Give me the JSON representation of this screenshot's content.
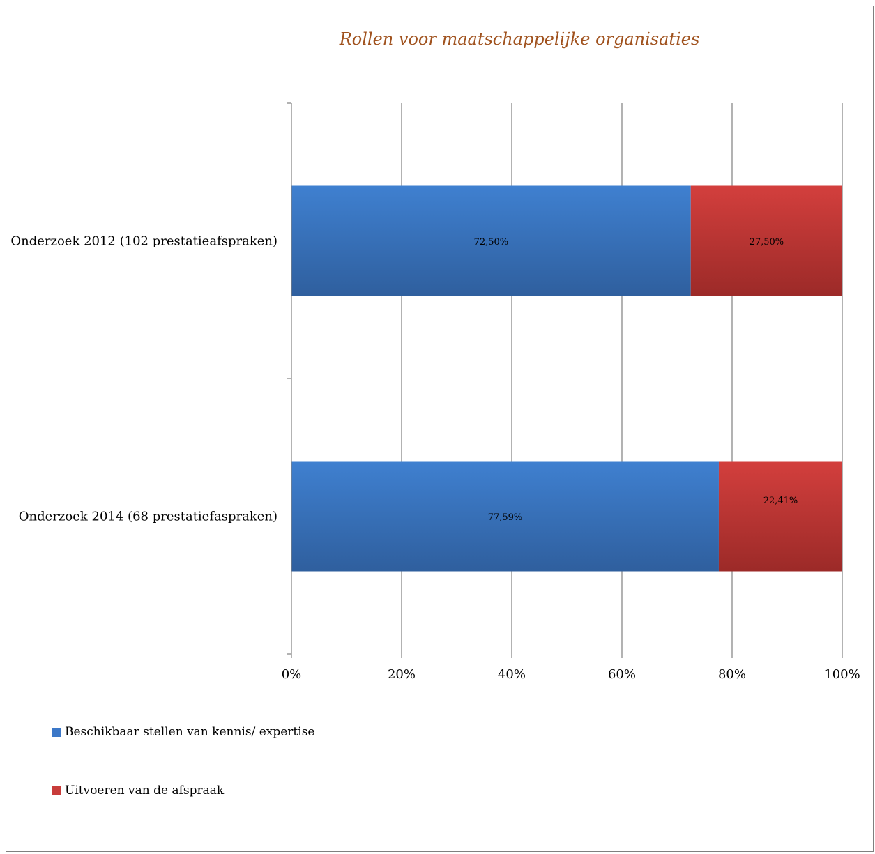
{
  "chart_data": {
    "type": "bar",
    "orientation": "horizontal",
    "stacked": true,
    "title": "Rollen voor maatschappelijke organisaties",
    "categories": [
      "Onderzoek 2012 (102 prestatieafspraken)",
      "Onderzoek 2014 (68 prestatiefaspraken)"
    ],
    "series": [
      {
        "name": "Beschikbaar stellen van kennis/ expertise",
        "values": [
          72.5,
          77.59
        ],
        "labels": [
          "72,50%",
          "77,59%"
        ],
        "color": "#3c78c8"
      },
      {
        "name": "Uitvoeren van de afspraak",
        "values": [
          27.5,
          22.41
        ],
        "labels": [
          "27,50%",
          "22,41%"
        ],
        "color": "#c83c3a"
      }
    ],
    "x_ticks": [
      "0%",
      "20%",
      "40%",
      "60%",
      "80%",
      "100%"
    ],
    "xlim": [
      0,
      100
    ],
    "grid": true,
    "legend_position": "bottom-left"
  },
  "colors": {
    "title": "#a0521e",
    "frame": "#7f7f7f",
    "grid": "#808080"
  }
}
